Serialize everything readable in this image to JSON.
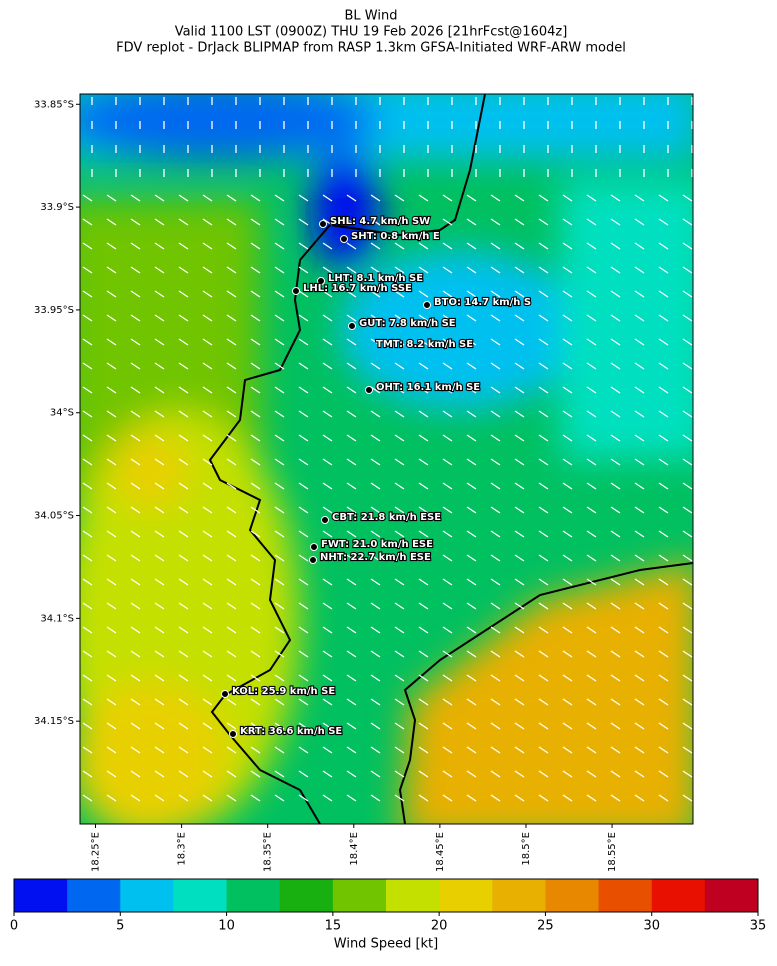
{
  "title": "BL Wind",
  "subtitle": "Valid 1100 LST (0900Z) THU 19 Feb 2026 [21hrFcst@1604z]",
  "subtitle2": "FDV replot - DrJack BLIPMAP from RASP 1.3km GFSA-Initiated WRF-ARW model",
  "map": {
    "xlim": [
      18.241,
      18.597
    ],
    "ylim": [
      -34.2,
      -33.845
    ],
    "xticks": [
      {
        "value": 18.25,
        "label": "18.25°E"
      },
      {
        "value": 18.3,
        "label": "18.3°E"
      },
      {
        "value": 18.35,
        "label": "18.35°E"
      },
      {
        "value": 18.4,
        "label": "18.4°E"
      },
      {
        "value": 18.45,
        "label": "18.45°E"
      },
      {
        "value": 18.5,
        "label": "18.5°E"
      },
      {
        "value": 18.55,
        "label": "18.55°E"
      }
    ],
    "yticks": [
      {
        "value": -33.85,
        "label": "33.85°S"
      },
      {
        "value": -33.9,
        "label": "33.9°S"
      },
      {
        "value": -33.95,
        "label": "33.95°S"
      },
      {
        "value": -34.0,
        "label": "34°S"
      },
      {
        "value": -34.05,
        "label": "34.05°S"
      },
      {
        "value": -34.1,
        "label": "34.1°S"
      },
      {
        "value": -34.15,
        "label": "34.15°S"
      }
    ],
    "stations": [
      "SHL: 4.7 km/h SW",
      "SHT: 0.8 km/h E",
      "LHT: 8.1 km/h SE",
      "LHL: 16.7 km/h SSE",
      "BTO: 14.7 km/h S",
      "GUT: 7.8 km/h SE",
      "TMT: 8.2 km/h SE",
      "OHT: 16.1 km/h SE",
      "CBT: 21.8 km/h ESE",
      "FWT: 21.0 km/h ESE",
      "NHT: 22.7 km/h ESE",
      "KOL: 25.9 km/h SE",
      "KRT: 36.6 km/h SE"
    ]
  },
  "colorbar": {
    "label": "Wind Speed [kt]",
    "lim": [
      0,
      35
    ],
    "ticks": [
      0,
      5,
      10,
      15,
      20,
      25,
      30,
      35
    ],
    "colors": [
      "#0010f0",
      "#0068f0",
      "#00c0f0",
      "#00e0c0",
      "#00c060",
      "#18b010",
      "#70c400",
      "#c4e000",
      "#e8d000",
      "#e8b000",
      "#e88800",
      "#e85000",
      "#e81000",
      "#c00020"
    ]
  }
}
